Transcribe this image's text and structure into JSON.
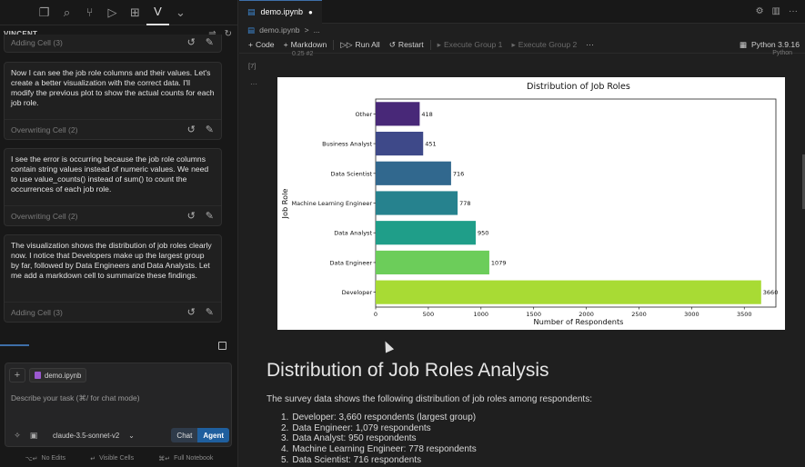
{
  "activity_bar": {
    "icons": [
      "files-icon",
      "search-icon",
      "source-control-icon",
      "run-debug-icon",
      "extensions-icon",
      "vincent-icon",
      "chevron-down-icon"
    ],
    "active_label": "V"
  },
  "chat_panel": {
    "title": "VINCENT",
    "messages": [
      {
        "text": "",
        "footer": "Adding Cell (3)"
      },
      {
        "text": "Now I can see the job role columns and their values. Let's create a better visualization with the correct data. I'll modify the previous plot to show the actual counts for each job role.",
        "footer": "Overwriting Cell (2)"
      },
      {
        "text": "I see the error is occurring because the job role columns contain string values instead of numeric values. We need to use value_counts() instead of sum() to count the occurrences of each job role.",
        "footer": "Overwriting Cell (2)"
      },
      {
        "text": "The visualization shows the distribution of job roles clearly now. I notice that Developers make up the largest group by far, followed by Data Engineers and Data Analysts. Let me add a markdown cell to summarize these findings.",
        "footer": "Adding Cell (3)"
      }
    ],
    "composer": {
      "file_chip": "demo.ipynb",
      "placeholder": "Describe your task (⌘/ for chat mode)",
      "model": "claude-3.5-sonnet-v2",
      "mode_chat": "Chat",
      "mode_agent": "Agent"
    },
    "status": [
      {
        "shortcut": "⌥↵",
        "label": "No Edits"
      },
      {
        "shortcut": "↵",
        "label": "Visible Cells"
      },
      {
        "shortcut": "⌘↵",
        "label": "Full Notebook"
      }
    ]
  },
  "editor": {
    "tab": {
      "label": "demo.ipynb"
    },
    "breadcrumb": [
      "demo.ipynb",
      ">",
      "..."
    ],
    "toolbar": {
      "code": "Code",
      "markdown": "Markdown",
      "run_all": "Run All",
      "restart": "Restart",
      "execute_group_1": "Execute Group 1",
      "execute_group_2": "Execute Group 2",
      "more": "···",
      "kernel": "Python 3.9.16"
    },
    "cell": {
      "exec_count": "[7]",
      "partial_line": "0.25    #2",
      "lang": "Python",
      "dots": "···"
    },
    "markdown": {
      "heading": "Distribution of Job Roles Analysis",
      "intro": "The survey data shows the following distribution of job roles among respondents:",
      "items": [
        {
          "num": "1.",
          "text": "Developer: 3,660 respondents (largest group)"
        },
        {
          "num": "2.",
          "text": "Data Engineer: 1,079 respondents"
        },
        {
          "num": "3.",
          "text": "Data Analyst: 950 respondents"
        },
        {
          "num": "4.",
          "text": "Machine Learning Engineer: 778 respondents"
        },
        {
          "num": "5.",
          "text": "Data Scientist: 716 respondents"
        }
      ]
    }
  },
  "chart_data": {
    "type": "bar",
    "orientation": "horizontal",
    "title": "Distribution of Job Roles",
    "xlabel": "Number of Respondents",
    "ylabel": "Job Role",
    "categories": [
      "Other",
      "Business Analyst",
      "Data Scientist",
      "Machine Learning Engineer",
      "Data Analyst",
      "Data Engineer",
      "Developer"
    ],
    "values": [
      418,
      451,
      716,
      778,
      950,
      1079,
      3660
    ],
    "colors": [
      "#482878",
      "#3e4989",
      "#31688e",
      "#26828e",
      "#1f9e89",
      "#6ccd5a",
      "#a8db34"
    ],
    "xticks": [
      0,
      500,
      1000,
      1500,
      2000,
      2500,
      3000,
      3500
    ],
    "xlim": [
      0,
      3800
    ],
    "grid": false
  }
}
